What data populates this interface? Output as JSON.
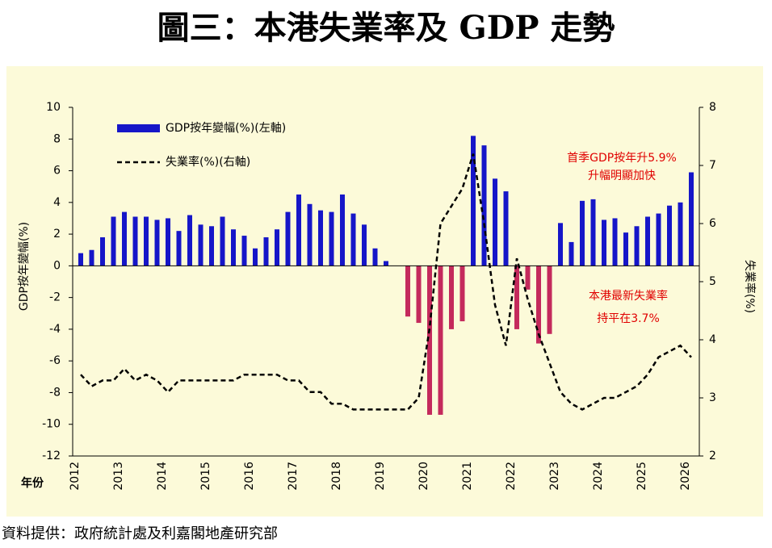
{
  "chart_data": {
    "type": "bar_line",
    "title": "圖三：本港失業率及 GDP 走勢",
    "y_label": "GDP按年變幅(%)",
    "y2_label": "失業率(%)",
    "x_label": "年份",
    "source": "資料提供：政府統計處及利嘉閣地產研究部",
    "categories": [
      "2012",
      null,
      null,
      null,
      "2013",
      null,
      null,
      null,
      "2014",
      null,
      null,
      null,
      "2015",
      null,
      null,
      null,
      "2016",
      null,
      null,
      null,
      "2017",
      null,
      null,
      null,
      "2018",
      null,
      null,
      null,
      "2019",
      null,
      null,
      null,
      "2020",
      null,
      null,
      null,
      "2021",
      null,
      null,
      null,
      "2022",
      null,
      null,
      null,
      "2023",
      null,
      null,
      null,
      "2024",
      null,
      null,
      null,
      "2025",
      null,
      null,
      null,
      "2026"
    ],
    "series": [
      {
        "name": "GDP按年變幅(%)(左軸)",
        "type": "bar",
        "color": "#1616c8",
        "negative_color": "#c42a5c",
        "values": [
          0.8,
          1.0,
          1.8,
          3.1,
          3.4,
          3.1,
          3.1,
          2.9,
          3.0,
          2.2,
          3.2,
          2.6,
          2.5,
          3.1,
          2.3,
          1.9,
          1.1,
          1.8,
          2.3,
          3.4,
          4.5,
          3.9,
          3.5,
          3.4,
          4.5,
          3.3,
          2.6,
          1.1,
          0.3,
          0.0,
          -3.2,
          -3.6,
          -9.4,
          -9.4,
          -4.0,
          -3.5,
          8.2,
          7.6,
          5.5,
          4.7,
          -4.0,
          -1.5,
          -4.9,
          -4.3,
          2.7,
          1.5,
          4.1,
          4.2,
          2.9,
          3.0,
          2.1,
          2.5,
          3.1,
          3.3,
          3.8,
          4.0,
          5.9
        ]
      },
      {
        "name": "失業率(%)(右軸)",
        "type": "line",
        "axis": "y2",
        "color": "#000000",
        "dashed": true,
        "values": [
          3.4,
          3.2,
          3.3,
          3.3,
          3.5,
          3.3,
          3.4,
          3.3,
          3.1,
          3.3,
          3.3,
          3.3,
          3.3,
          3.3,
          3.3,
          3.4,
          3.4,
          3.4,
          3.4,
          3.3,
          3.3,
          3.1,
          3.1,
          2.9,
          2.9,
          2.8,
          2.8,
          2.8,
          2.8,
          2.8,
          2.8,
          3.0,
          4.2,
          6.0,
          6.3,
          6.6,
          7.2,
          6.0,
          4.6,
          3.9,
          5.4,
          4.7,
          4.1,
          3.6,
          3.1,
          2.9,
          2.8,
          2.9,
          3.0,
          3.0,
          3.1,
          3.2,
          3.4,
          3.7,
          3.8,
          3.9,
          3.7
        ]
      }
    ],
    "ylim": [
      -12,
      10
    ],
    "yticks": [
      -12,
      -10,
      -8,
      -6,
      -4,
      -2,
      0,
      2,
      4,
      6,
      8,
      10
    ],
    "y2lim": [
      2,
      8
    ],
    "y2ticks": [
      2,
      3,
      4,
      5,
      6,
      7,
      8
    ],
    "annotations": [
      "首季GDP按年升5.9%",
      "升幅明顯加快",
      "本港最新失業率",
      "持平在3.7%"
    ]
  }
}
